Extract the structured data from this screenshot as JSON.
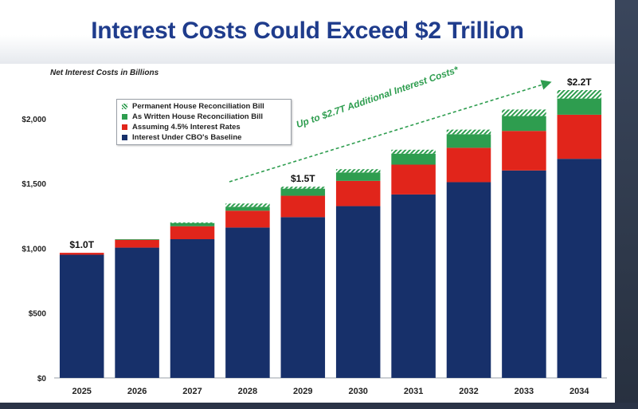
{
  "slide": {
    "title": "Interest Costs Could Exceed $2 Trillion"
  },
  "colors": {
    "title": "#1f3c8c",
    "baseline": "#17306a",
    "rates": "#e1251b",
    "written": "#2e9d4f",
    "permanent": "#2e9d4f"
  },
  "chart_data": {
    "type": "bar",
    "stacked": true,
    "subtitle": "Net Interest Costs in Billions",
    "categories": [
      "2025",
      "2026",
      "2027",
      "2028",
      "2029",
      "2030",
      "2031",
      "2032",
      "2033",
      "2034"
    ],
    "series": [
      {
        "name": "Interest Under CBO's Baseline",
        "values": [
          950,
          1005,
          1070,
          1160,
          1240,
          1325,
          1415,
          1510,
          1600,
          1690
        ]
      },
      {
        "name": "Assuming 4.5% Interest Rates",
        "values": [
          15,
          60,
          100,
          130,
          165,
          195,
          230,
          265,
          305,
          340
        ]
      },
      {
        "name": "As Written House Reconciliation Bill",
        "values": [
          0,
          5,
          25,
          30,
          55,
          65,
          85,
          105,
          115,
          125
        ]
      },
      {
        "name": "Permanent House Reconciliation Bill",
        "values": [
          0,
          0,
          5,
          25,
          15,
          25,
          30,
          35,
          50,
          65
        ]
      }
    ],
    "legend_order": [
      3,
      2,
      1,
      0
    ],
    "ylim": [
      0,
      2300
    ],
    "yticks": [
      {
        "value": 0,
        "label": "$0"
      },
      {
        "value": 500,
        "label": "$500"
      },
      {
        "value": 1000,
        "label": "$1,000"
      },
      {
        "value": 1500,
        "label": "$1,500"
      },
      {
        "value": 2000,
        "label": "$2,000"
      }
    ],
    "bar_labels": [
      {
        "category": "2025",
        "text": "$1.0T"
      },
      {
        "category": "2029",
        "text": "$1.5T"
      },
      {
        "category": "2034",
        "text": "$2.2T"
      }
    ],
    "annotation": "Up to $2.7T Additional Interest Costs*",
    "grid": false,
    "legend_position": "top-left"
  }
}
